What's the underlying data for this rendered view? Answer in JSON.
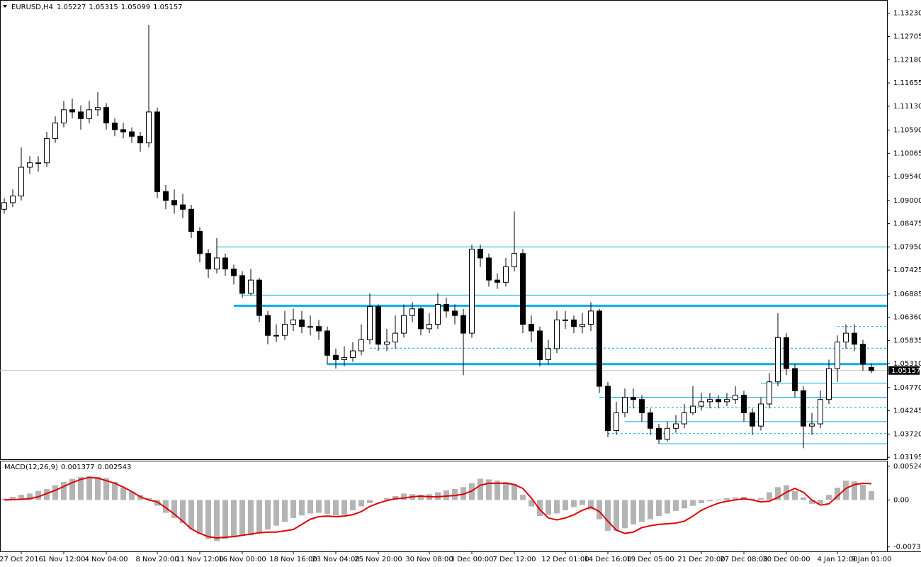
{
  "chart_data": [
    {
      "type": "candlestick",
      "title": "EURUSD,H4",
      "color": "#000000",
      "up_fill": "#ffffff",
      "price_line_color": "#c0c0c0",
      "price_tag_color": "#000000",
      "categories": [
        null,
        null,
        "27 Oct 2016",
        null,
        null,
        null,
        null,
        "1 Nov 12:00",
        null,
        null,
        null,
        null,
        "4 Nov 04:00",
        null,
        null,
        null,
        null,
        null,
        "8 Nov 20:00",
        null,
        null,
        null,
        null,
        "11 Nov 12:00",
        null,
        null,
        null,
        null,
        "16 Nov 00:00",
        null,
        null,
        null,
        null,
        null,
        "18 Nov 16:00",
        null,
        null,
        null,
        null,
        "23 Nov 04:00",
        null,
        null,
        null,
        null,
        "25 Nov 20:00",
        null,
        null,
        null,
        null,
        null,
        "30 Nov 08:00",
        null,
        null,
        null,
        null,
        "3 Dec 00:00",
        null,
        null,
        null,
        null,
        "7 Dec 12:00",
        null,
        null,
        null,
        null,
        null,
        "12 Dec 01:00",
        null,
        null,
        null,
        null,
        "14 Dec 16:00",
        null,
        null,
        null,
        null,
        "19 Dec 05:00",
        null,
        null,
        null,
        null,
        null,
        "21 Dec 20:00",
        null,
        null,
        null,
        null,
        "27 Dec 08:00",
        null,
        null,
        null,
        null,
        "30 Dec 00:00",
        null,
        null,
        null,
        null,
        null,
        "4 Jan 12:00",
        null,
        null,
        null,
        "9 Jan 01:00"
      ],
      "open": [
        1.088,
        1.0895,
        1.091,
        1.0975,
        1.0985,
        1.0985,
        1.104,
        1.1075,
        1.1105,
        1.11,
        1.1085,
        1.1105,
        1.111,
        1.1075,
        1.106,
        1.1055,
        1.1045,
        1.103,
        1.11,
        1.092,
        1.09,
        1.089,
        1.088,
        1.083,
        1.078,
        1.0745,
        1.077,
        1.0745,
        1.073,
        1.069,
        1.072,
        1.064,
        1.0595,
        1.0595,
        1.062,
        1.063,
        1.0615,
        1.0615,
        1.0605,
        1.055,
        1.054,
        1.0545,
        1.056,
        1.0585,
        1.066,
        1.0575,
        1.058,
        1.06,
        1.064,
        1.0655,
        1.061,
        1.062,
        1.0665,
        1.065,
        1.064,
        1.06,
        1.079,
        1.077,
        1.072,
        1.0715,
        1.075,
        1.078,
        1.062,
        1.0605,
        1.054,
        1.0565,
        1.063,
        1.063,
        1.0615,
        1.062,
        1.065,
        1.048,
        1.038,
        1.042,
        1.0455,
        1.045,
        1.042,
        1.0385,
        1.036,
        1.0385,
        1.0395,
        1.042,
        1.0435,
        1.0445,
        1.045,
        1.0445,
        1.045,
        1.046,
        1.042,
        1.039,
        1.044,
        1.049,
        1.059,
        1.052,
        1.047,
        1.039,
        1.0395,
        1.045,
        1.052,
        1.058,
        1.06,
        1.0575,
        1.05227
      ],
      "high": [
        1.0905,
        1.0925,
        1.102,
        1.1,
        1.1,
        1.1055,
        1.109,
        1.1125,
        1.113,
        1.1115,
        1.1125,
        1.1145,
        1.112,
        1.1085,
        1.1075,
        1.1065,
        1.1055,
        1.1297,
        1.111,
        1.0935,
        1.0925,
        1.0915,
        1.089,
        1.084,
        1.079,
        1.0815,
        1.078,
        1.0755,
        1.074,
        1.0745,
        1.0725,
        1.065,
        1.062,
        1.065,
        1.0655,
        1.065,
        1.064,
        1.063,
        1.0615,
        1.0565,
        1.057,
        1.058,
        1.062,
        1.069,
        1.0665,
        1.061,
        1.064,
        1.0665,
        1.067,
        1.066,
        1.0645,
        1.069,
        1.068,
        1.0665,
        1.0655,
        1.08,
        1.08,
        1.078,
        1.0735,
        1.077,
        1.0875,
        1.079,
        1.064,
        1.0615,
        1.0585,
        1.065,
        1.065,
        1.064,
        1.0645,
        1.067,
        1.0655,
        1.049,
        1.0445,
        1.0475,
        1.0475,
        1.046,
        1.043,
        1.0395,
        1.04,
        1.0415,
        1.044,
        1.048,
        1.0465,
        1.0465,
        1.046,
        1.0465,
        1.048,
        1.047,
        1.043,
        1.0455,
        1.051,
        1.0645,
        1.06,
        1.053,
        1.048,
        1.042,
        1.047,
        1.054,
        1.0595,
        1.062,
        1.062,
        1.0585,
        1.05315
      ],
      "low": [
        1.087,
        1.0885,
        1.09,
        1.096,
        1.0965,
        1.0975,
        1.103,
        1.1065,
        1.1085,
        1.106,
        1.1075,
        1.109,
        1.106,
        1.1045,
        1.104,
        1.103,
        1.101,
        1.102,
        1.0905,
        1.088,
        1.087,
        1.086,
        1.0815,
        1.076,
        1.0725,
        1.0735,
        1.073,
        1.071,
        1.068,
        1.0685,
        1.0625,
        1.0575,
        1.058,
        1.0585,
        1.0605,
        1.06,
        1.0595,
        1.0585,
        1.053,
        1.052,
        1.0525,
        1.0535,
        1.055,
        1.0575,
        1.056,
        1.056,
        1.0565,
        1.059,
        1.0625,
        1.0595,
        1.06,
        1.061,
        1.0635,
        1.062,
        1.0505,
        1.059,
        1.075,
        1.0705,
        1.07,
        1.0705,
        1.074,
        1.06,
        1.058,
        1.0525,
        1.053,
        1.0555,
        1.061,
        1.06,
        1.06,
        1.0605,
        1.0465,
        1.0365,
        1.037,
        1.041,
        1.043,
        1.04,
        1.037,
        1.035,
        1.0355,
        1.0375,
        1.0385,
        1.0415,
        1.0425,
        1.043,
        1.043,
        1.0435,
        1.044,
        1.04,
        1.037,
        1.038,
        1.043,
        1.048,
        1.0505,
        1.0455,
        1.034,
        1.037,
        1.0385,
        1.044,
        1.049,
        1.0565,
        1.056,
        1.0515,
        1.05099
      ],
      "close": [
        1.0895,
        1.091,
        1.0975,
        1.0985,
        1.0985,
        1.104,
        1.1075,
        1.1105,
        1.11,
        1.1085,
        1.1105,
        1.111,
        1.1075,
        1.106,
        1.1055,
        1.1045,
        1.103,
        1.11,
        1.092,
        1.09,
        1.089,
        1.088,
        1.083,
        1.078,
        1.0745,
        1.077,
        1.0745,
        1.073,
        1.069,
        1.072,
        1.064,
        1.0595,
        1.0595,
        1.062,
        1.063,
        1.0615,
        1.0615,
        1.0605,
        1.055,
        1.054,
        1.0545,
        1.056,
        1.0585,
        1.066,
        1.0575,
        1.058,
        1.06,
        1.064,
        1.0655,
        1.061,
        1.062,
        1.0665,
        1.065,
        1.064,
        1.06,
        1.079,
        1.077,
        1.072,
        1.0715,
        1.075,
        1.078,
        1.062,
        1.0605,
        1.054,
        1.0565,
        1.063,
        1.063,
        1.0615,
        1.062,
        1.065,
        1.048,
        1.038,
        1.042,
        1.0455,
        1.045,
        1.042,
        1.0385,
        1.036,
        1.0385,
        1.0395,
        1.042,
        1.0435,
        1.0445,
        1.045,
        1.0445,
        1.045,
        1.046,
        1.042,
        1.039,
        1.044,
        1.049,
        1.059,
        1.052,
        1.047,
        1.039,
        1.0395,
        1.045,
        1.052,
        1.058,
        1.06,
        1.0575,
        1.053,
        1.05157
      ],
      "levels_color": "#00aee8",
      "levels": [
        {
          "value": 1.0795,
          "start": 25,
          "style": "thin"
        },
        {
          "value": 1.0686,
          "start": 28,
          "style": "thin"
        },
        {
          "value": 1.0662,
          "start": 27,
          "style": "thick"
        },
        {
          "value": 1.0615,
          "start": 98,
          "style": "dashed"
        },
        {
          "value": 1.0566,
          "start": 43,
          "style": "dashed"
        },
        {
          "value": 1.053,
          "start": 38,
          "style": "thick"
        },
        {
          "value": 1.0487,
          "start": 89,
          "style": "thin"
        },
        {
          "value": 1.0455,
          "start": 70,
          "style": "thin"
        },
        {
          "value": 1.0432,
          "start": 73,
          "style": "dashed"
        },
        {
          "value": 1.04,
          "start": 73,
          "style": "thin"
        },
        {
          "value": 1.0373,
          "start": 71,
          "style": "dashed"
        },
        {
          "value": 1.035,
          "start": 77,
          "style": "thin"
        }
      ],
      "ylim": [
        1.0315,
        1.1353
      ],
      "yticks": [
        {
          "value": 1.1323,
          "label": "1.13230"
        },
        1.12705,
        {
          "value": 1.1218,
          "label": "1.12180"
        },
        1.11655,
        {
          "value": 1.1113,
          "label": "1.11130"
        },
        {
          "value": 1.1059,
          "label": "1.10590"
        },
        1.10065,
        {
          "value": 1.0954,
          "label": "1.09540"
        },
        {
          "value": 1.09,
          "label": "1.09000"
        },
        1.08475,
        {
          "value": 1.0795,
          "label": "1.07950"
        },
        1.07425,
        1.06885,
        {
          "value": 1.0636,
          "label": "1.06360"
        },
        1.05835,
        {
          "value": 1.0531,
          "label": "1.05310"
        },
        {
          "value": 1.0477,
          "label": "1.04770"
        },
        1.04245,
        {
          "value": 1.0372,
          "label": "1.03720"
        },
        1.03195
      ],
      "grid": false
    },
    {
      "type": "macd",
      "title": "MACD(12,26,9)",
      "histogram": {
        "color": "#b4b4b4",
        "values": [
          0.0002,
          0.0005,
          0.0008,
          0.001,
          0.0014,
          0.0017,
          0.0023,
          0.0028,
          0.0033,
          0.0036,
          0.0037,
          0.0036,
          0.0034,
          0.0028,
          0.0019,
          0.0013,
          0.0008,
          0.0003,
          -0.0009,
          -0.002,
          -0.0028,
          -0.0036,
          -0.0045,
          -0.0053,
          -0.0061,
          -0.0064,
          -0.0061,
          -0.0058,
          -0.0056,
          -0.0055,
          -0.0052,
          -0.0046,
          -0.004,
          -0.0034,
          -0.0028,
          -0.0024,
          -0.0021,
          -0.002,
          -0.0022,
          -0.0024,
          -0.0023,
          -0.0016,
          -0.001,
          -0.0005,
          0,
          0.0003,
          0.0006,
          0.001,
          0.0009,
          0.0008,
          0.0009,
          0.0012,
          0.0015,
          0.0017,
          0.002,
          0.0026,
          0.0033,
          0.0032,
          0.003,
          0.0028,
          0.0025,
          0.0008,
          -0.001,
          -0.0025,
          -0.0023,
          -0.0021,
          -0.0016,
          -0.0011,
          -0.0008,
          -0.0015,
          -0.003,
          -0.0048,
          -0.0048,
          -0.0044,
          -0.0038,
          -0.0034,
          -0.003,
          -0.0025,
          -0.0021,
          -0.0017,
          -0.0013,
          -0.0009,
          -0.0005,
          -0.0002,
          0.0001,
          0.0003,
          0.0004,
          0.0005,
          0.0002,
          0.0003,
          0.0012,
          0.002,
          0.0023,
          0.0014,
          0.0004,
          -0.0006,
          -0.0006,
          0.0008,
          0.0019,
          0.003,
          0.0029,
          0.0024,
          0.001377
        ]
      },
      "signal": {
        "color": "#e00000",
        "values": [
          0,
          5e-05,
          0.0001,
          0.0002,
          0.0005,
          0.001,
          0.0015,
          0.0021,
          0.0027,
          0.0032,
          0.0035,
          0.0034,
          0.003,
          0.0026,
          0.002,
          0.0013,
          0.0005,
          0,
          -0.0003,
          -0.0012,
          -0.0022,
          -0.0033,
          -0.0045,
          -0.0052,
          -0.0057,
          -0.0059,
          -0.0058,
          -0.0057,
          -0.0055,
          -0.0053,
          -0.0051,
          -0.005,
          -0.005,
          -0.0048,
          -0.0046,
          -0.0038,
          -0.003,
          -0.0026,
          -0.0025,
          -0.0026,
          -0.0025,
          -0.0023,
          -0.0018,
          -0.001,
          -0.0005,
          -0.0001,
          0.0002,
          0.0003,
          0.0005,
          0.0006,
          0.0005,
          0.0005,
          0.0006,
          0.0007,
          0.0009,
          0.0014,
          0.0023,
          0.0026,
          0.0026,
          0.0026,
          0.0024,
          0.0018,
          0.0003,
          -0.0015,
          -0.0028,
          -0.0031,
          -0.0028,
          -0.0023,
          -0.0016,
          -0.0011,
          -0.0018,
          -0.0033,
          -0.0047,
          -0.0052,
          -0.005,
          -0.0043,
          -0.004,
          -0.0038,
          -0.0037,
          -0.0036,
          -0.0033,
          -0.0025,
          -0.0016,
          -0.001,
          -0.0005,
          -0.0002,
          0,
          0.0002,
          0,
          -0.0003,
          -0.0002,
          0.0004,
          0.0012,
          0.0018,
          0.0012,
          0,
          -0.0008,
          -0.0006,
          0.0006,
          0.0018,
          0.0024,
          0.0026,
          0.002543
        ]
      },
      "ylim": [
        -0.008,
        0.006
      ],
      "yticks": [
        0.005244,
        {
          "value": 0,
          "label": "0.00"
        },
        -0.007303
      ]
    }
  ]
}
